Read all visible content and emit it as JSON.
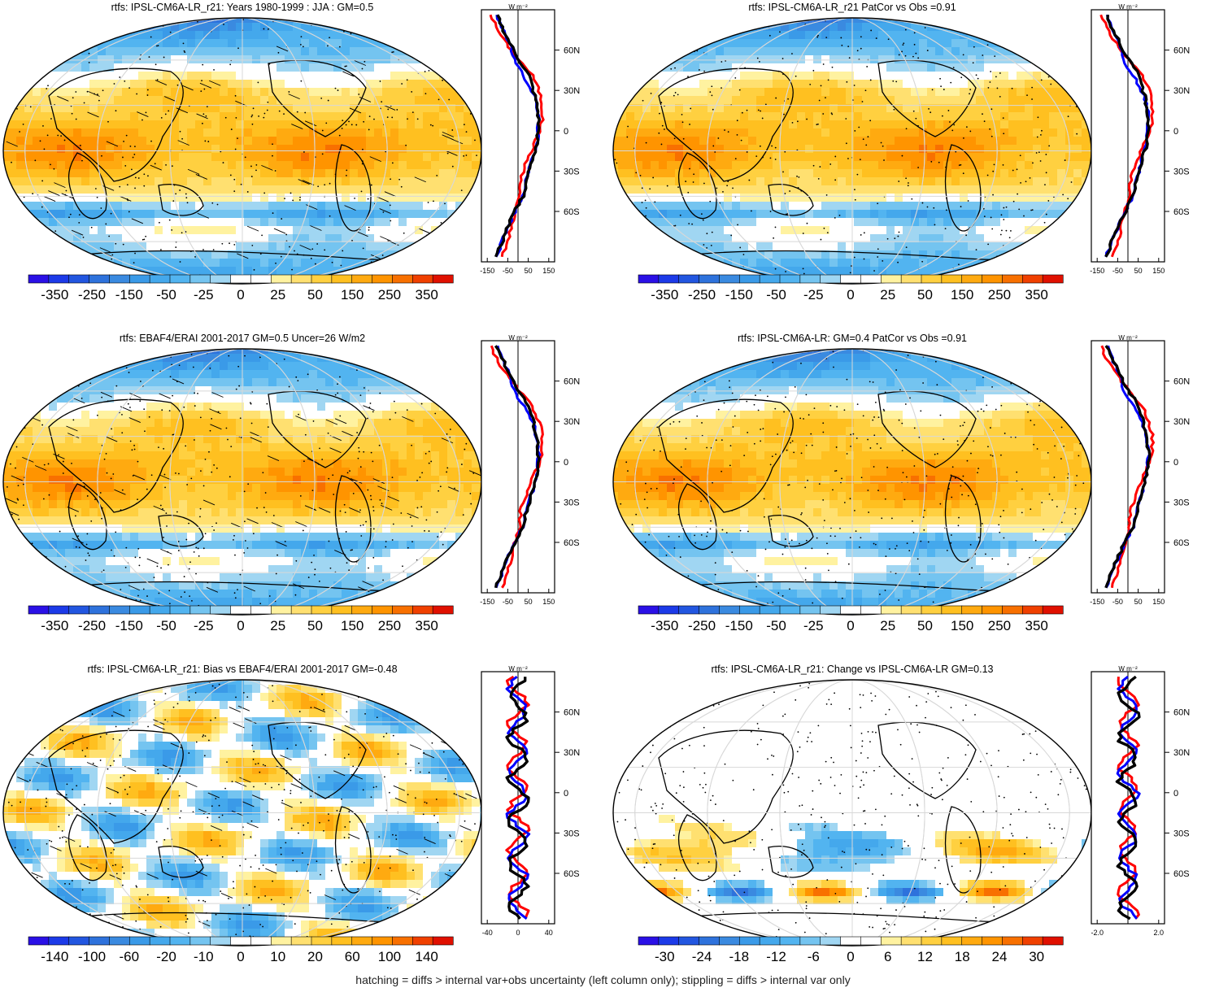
{
  "footnote": "hatching = diffs > internal var+obs uncertainty (left column only); stippling = diffs > internal var only",
  "panels": [
    {
      "title": "rtfs: IPSL-CM6A-LR_r21: Years 1980-1999 : JJA : GM=0.5",
      "colorbar_labels": [
        "-350",
        "-250",
        "-150",
        "-50",
        "-25",
        "0",
        "25",
        "50",
        "150",
        "250",
        "350"
      ],
      "zonal_xticks": [
        "-150",
        "-50",
        "50",
        "150"
      ],
      "zonal_unit": "W m⁻²",
      "pattern": "mean",
      "hatch": true
    },
    {
      "title": "rtfs: IPSL-CM6A-LR_r21 PatCor vs Obs =0.91",
      "colorbar_labels": [
        "-350",
        "-250",
        "-150",
        "-50",
        "-25",
        "0",
        "25",
        "50",
        "150",
        "250",
        "350"
      ],
      "zonal_xticks": [
        "-150",
        "-50",
        "50",
        "150"
      ],
      "zonal_unit": "W m⁻²",
      "pattern": "mean",
      "hatch": false
    },
    {
      "title": "rtfs: EBAF4/ERAI 2001-2017 GM=0.5 Uncer=26 W/m2",
      "colorbar_labels": [
        "-350",
        "-250",
        "-150",
        "-50",
        "-25",
        "0",
        "25",
        "50",
        "150",
        "250",
        "350"
      ],
      "zonal_xticks": [
        "-150",
        "-50",
        "50",
        "150"
      ],
      "zonal_unit": "W m⁻²",
      "pattern": "mean",
      "hatch": true
    },
    {
      "title": "rtfs: IPSL-CM6A-LR: GM=0.4 PatCor vs Obs =0.91",
      "colorbar_labels": [
        "-350",
        "-250",
        "-150",
        "-50",
        "-25",
        "0",
        "25",
        "50",
        "150",
        "250",
        "350"
      ],
      "zonal_xticks": [
        "-150",
        "-50",
        "50",
        "150"
      ],
      "zonal_unit": "W m⁻²",
      "pattern": "mean",
      "hatch": false
    },
    {
      "title": "rtfs: IPSL-CM6A-LR_r21: Bias vs EBAF4/ERAI 2001-2017 GM=-0.48",
      "colorbar_labels": [
        "-140",
        "-100",
        "-60",
        "-20",
        "-10",
        "0",
        "10",
        "20",
        "60",
        "100",
        "140"
      ],
      "zonal_xticks": [
        "-40",
        "0",
        "40"
      ],
      "zonal_unit": "W m⁻²",
      "pattern": "bias",
      "hatch": true
    },
    {
      "title": "rtfs: IPSL-CM6A-LR_r21: Change vs IPSL-CM6A-LR GM=0.13",
      "colorbar_labels": [
        "-30",
        "-24",
        "-18",
        "-12",
        "-6",
        "0",
        "6",
        "12",
        "18",
        "24",
        "30"
      ],
      "zonal_xticks": [
        "-2.0",
        "2.0"
      ],
      "zonal_unit": "W m⁻²",
      "pattern": "change",
      "hatch": false
    }
  ],
  "lat_labels": [
    "60N",
    "30N",
    "0",
    "30S",
    "60S"
  ],
  "legend_colors": {
    "model": "#000000",
    "obs_a": "#ff0000",
    "obs_b": "#0000ff"
  }
}
